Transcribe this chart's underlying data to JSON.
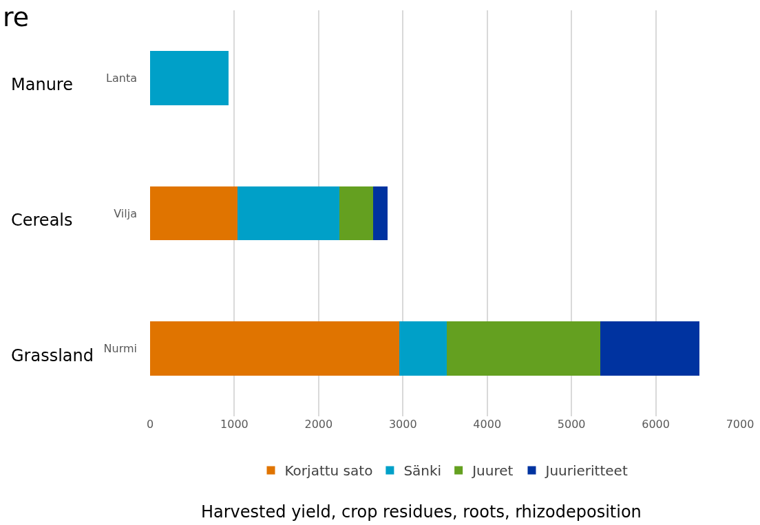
{
  "chart_data": {
    "type": "bar",
    "orientation": "horizontal",
    "stacked": true,
    "categories": [
      "Lanta",
      "Vilja",
      "Nurmi"
    ],
    "series": [
      {
        "name": "Korjattu sato",
        "color": "#e07400",
        "values": [
          null,
          1040,
          2960
        ]
      },
      {
        "name": "Sänki",
        "color": "#00a0c8",
        "values": [
          930,
          1210,
          560
        ]
      },
      {
        "name": "Juuret",
        "color": "#64a020",
        "values": [
          null,
          400,
          1820
        ]
      },
      {
        "name": "Juurieritteet",
        "color": "#0033a0",
        "values": [
          null,
          170,
          1180
        ]
      }
    ],
    "xlim": [
      0,
      7000
    ],
    "xticks": [
      0,
      1000,
      2000,
      3000,
      4000,
      5000,
      6000,
      7000
    ],
    "grid": "x",
    "legend": "bottom",
    "annotations": [
      "re",
      "Manure",
      "Cereals",
      "Grassland",
      "Harvested yield, crop residues, roots, rhizodeposition"
    ]
  }
}
